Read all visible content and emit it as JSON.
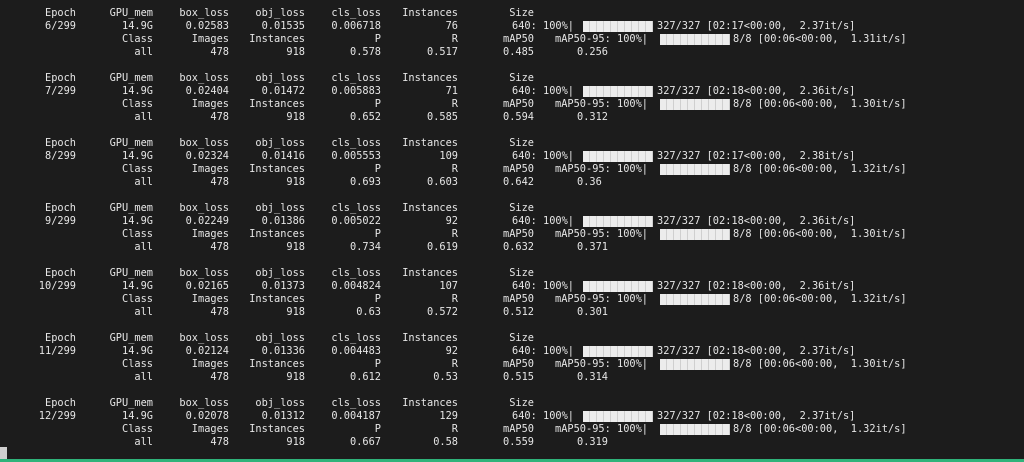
{
  "header_labels": {
    "epoch": "Epoch",
    "gpu_mem": "GPU_mem",
    "box_loss": "box_loss",
    "obj_loss": "obj_loss",
    "cls_loss": "cls_loss",
    "instances": "Instances",
    "size": "Size"
  },
  "val_labels": {
    "class": "Class",
    "images": "Images",
    "instances": "Instances",
    "p": "P",
    "r": "R",
    "map50": "mAP50",
    "map50_95_prefix": "mAP50-95: 100%|"
  },
  "train_progress_prefix": "640: 100%|",
  "epochs": [
    {
      "epoch": "6/299",
      "gpu_mem": "14.9G",
      "box_loss": "0.02583",
      "obj_loss": "0.01535",
      "cls_loss": "0.006718",
      "instances": "76",
      "train_stats": "327/327 [02:17<00:00,  2.37it/s]",
      "val_stats": "8/8 [00:06<00:00,  1.31it/s]",
      "class": "all",
      "images": "478",
      "val_instances": "918",
      "p": "0.578",
      "r": "0.517",
      "map50": "0.485",
      "map50_95": "0.256"
    },
    {
      "epoch": "7/299",
      "gpu_mem": "14.9G",
      "box_loss": "0.02404",
      "obj_loss": "0.01472",
      "cls_loss": "0.005883",
      "instances": "71",
      "train_stats": "327/327 [02:18<00:00,  2.36it/s]",
      "val_stats": "8/8 [00:06<00:00,  1.30it/s]",
      "class": "all",
      "images": "478",
      "val_instances": "918",
      "p": "0.652",
      "r": "0.585",
      "map50": "0.594",
      "map50_95": "0.312"
    },
    {
      "epoch": "8/299",
      "gpu_mem": "14.9G",
      "box_loss": "0.02324",
      "obj_loss": "0.01416",
      "cls_loss": "0.005553",
      "instances": "109",
      "train_stats": "327/327 [02:17<00:00,  2.38it/s]",
      "val_stats": "8/8 [00:06<00:00,  1.32it/s]",
      "class": "all",
      "images": "478",
      "val_instances": "918",
      "p": "0.693",
      "r": "0.603",
      "map50": "0.642",
      "map50_95": "0.36"
    },
    {
      "epoch": "9/299",
      "gpu_mem": "14.9G",
      "box_loss": "0.02249",
      "obj_loss": "0.01386",
      "cls_loss": "0.005022",
      "instances": "92",
      "train_stats": "327/327 [02:18<00:00,  2.36it/s]",
      "val_stats": "8/8 [00:06<00:00,  1.30it/s]",
      "class": "all",
      "images": "478",
      "val_instances": "918",
      "p": "0.734",
      "r": "0.619",
      "map50": "0.632",
      "map50_95": "0.371"
    },
    {
      "epoch": "10/299",
      "gpu_mem": "14.9G",
      "box_loss": "0.02165",
      "obj_loss": "0.01373",
      "cls_loss": "0.004824",
      "instances": "107",
      "train_stats": "327/327 [02:18<00:00,  2.36it/s]",
      "val_stats": "8/8 [00:06<00:00,  1.32it/s]",
      "class": "all",
      "images": "478",
      "val_instances": "918",
      "p": "0.63",
      "r": "0.572",
      "map50": "0.512",
      "map50_95": "0.301"
    },
    {
      "epoch": "11/299",
      "gpu_mem": "14.9G",
      "box_loss": "0.02124",
      "obj_loss": "0.01336",
      "cls_loss": "0.004483",
      "instances": "92",
      "train_stats": "327/327 [02:18<00:00,  2.37it/s]",
      "val_stats": "8/8 [00:06<00:00,  1.30it/s]",
      "class": "all",
      "images": "478",
      "val_instances": "918",
      "p": "0.612",
      "r": "0.53",
      "map50": "0.515",
      "map50_95": "0.314"
    },
    {
      "epoch": "12/299",
      "gpu_mem": "14.9G",
      "box_loss": "0.02078",
      "obj_loss": "0.01312",
      "cls_loss": "0.004187",
      "instances": "129",
      "train_stats": "327/327 [02:18<00:00,  2.37it/s]",
      "val_stats": "8/8 [00:06<00:00,  1.32it/s]",
      "class": "all",
      "images": "478",
      "val_instances": "918",
      "p": "0.667",
      "r": "0.58",
      "map50": "0.559",
      "map50_95": "0.319"
    }
  ],
  "progress": {
    "train_fraction": 1.0,
    "val_fraction": 1.0
  },
  "colors": {
    "background": "#1c1c1c",
    "text": "#e6e6e6",
    "bar": "#ececec",
    "status_line": "#2fb37a"
  }
}
